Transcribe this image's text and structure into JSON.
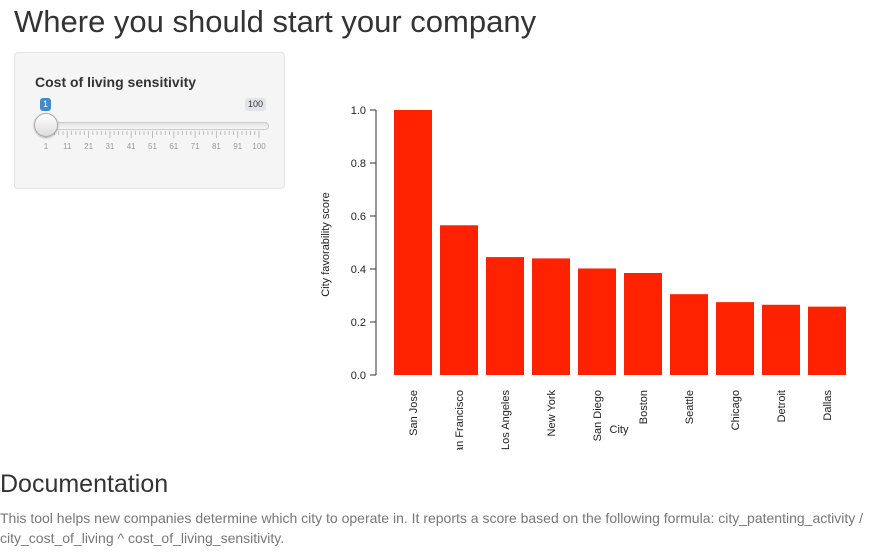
{
  "page": {
    "title": "Where you should start your company"
  },
  "sidebar": {
    "slider": {
      "label": "Cost of living sensitivity",
      "min": 1,
      "max": 100,
      "value": 1,
      "value_label": "1",
      "max_label": "100",
      "ticks": [
        "1",
        "11",
        "21",
        "31",
        "41",
        "51",
        "61",
        "71",
        "81",
        "91",
        "100"
      ]
    }
  },
  "chart_data": {
    "type": "bar",
    "categories": [
      "San Jose",
      "San Francisco",
      "Los Angeles",
      "New York",
      "San Diego",
      "Boston",
      "Seattle",
      "Chicago",
      "Detroit",
      "Dallas"
    ],
    "values": [
      1.0,
      0.565,
      0.445,
      0.44,
      0.402,
      0.385,
      0.305,
      0.275,
      0.265,
      0.258
    ],
    "title": "",
    "xlabel": "City",
    "ylabel": "City favorability score",
    "ylim": [
      0,
      1.0
    ],
    "yticks": [
      "0.0",
      "0.2",
      "0.4",
      "0.6",
      "0.8",
      "1.0"
    ],
    "bar_color": "#ff2200",
    "grid": false
  },
  "documentation": {
    "heading": "Documentation",
    "text": "This tool helps new companies determine which city to operate in. It reports a score based on the following formula: city_patenting_activity / city_cost_of_living ^ cost_of_living_sensitivity."
  }
}
